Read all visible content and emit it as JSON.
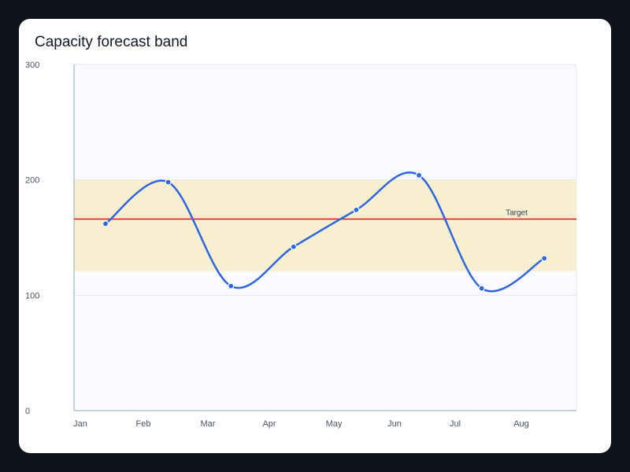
{
  "chart_data": {
    "type": "line",
    "title": "Capacity forecast band",
    "xlabel": "",
    "ylabel": "",
    "categories": [
      "Jan",
      "Feb",
      "Mar",
      "Apr",
      "May",
      "Jun",
      "Jul",
      "Aug"
    ],
    "series": [
      {
        "values": [
          162,
          198,
          108,
          142,
          174,
          204,
          106,
          132
        ]
      }
    ],
    "ylim": [
      0,
      300
    ],
    "yticks": [
      "0",
      "100",
      "200",
      "300"
    ],
    "band": {
      "from": 121,
      "to": 200
    },
    "reference_line": {
      "label": "Target",
      "value": 166
    },
    "grid": true,
    "colors": {
      "line": "#2f66e0",
      "band": "#f7efcf",
      "reference": "#d61f1f",
      "plot_background": "#f8fafd"
    }
  }
}
